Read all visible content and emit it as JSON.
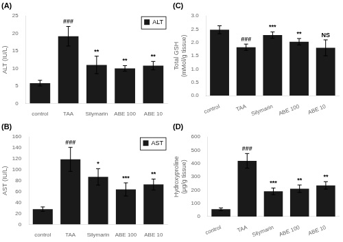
{
  "chart_data": [
    {
      "type": "bar",
      "title": "(A)",
      "categories": [
        "control",
        "TAA",
        "Silymarin",
        "ABE 100",
        "ABE 10"
      ],
      "series": [
        {
          "name": "ALT",
          "color": "#1a1a1a",
          "values": [
            5.8,
            19.2,
            11.0,
            10.0,
            10.8
          ],
          "errors": [
            0.8,
            2.8,
            2.5,
            0.8,
            1.2
          ]
        }
      ],
      "ylabel": "ALT (IU/L)",
      "ylim": [
        0,
        25
      ],
      "yticks": [
        0,
        5,
        10,
        15,
        20,
        25
      ],
      "annotations": [
        null,
        "###",
        "**",
        "**",
        "**"
      ],
      "legend": "upper right",
      "grid": false
    },
    {
      "type": "bar",
      "title": "(B)",
      "categories": [
        "control",
        "TAA",
        "Silymarin",
        "ABE 100",
        "ABE 10"
      ],
      "series": [
        {
          "name": "AST",
          "color": "#1a1a1a",
          "values": [
            28,
            119,
            87,
            64,
            73
          ],
          "errors": [
            4,
            22,
            15,
            12,
            10
          ]
        }
      ],
      "ylabel": "AST (IU/L)",
      "ylim": [
        0,
        160
      ],
      "yticks": [
        0,
        20,
        40,
        60,
        80,
        100,
        120,
        140,
        160
      ],
      "annotations": [
        null,
        "###",
        "*",
        "***",
        "**"
      ],
      "legend": "upper right",
      "grid": false
    },
    {
      "type": "bar",
      "title": "(C)",
      "categories": [
        "control",
        "TAA",
        "Silymarin",
        "ABE 100",
        "ABE 10"
      ],
      "values": [
        2.48,
        1.82,
        2.28,
        2.03,
        1.8
      ],
      "errors": [
        0.15,
        0.12,
        0.12,
        0.12,
        0.3
      ],
      "color": "#1a1a1a",
      "ylabel": [
        "Total GSH",
        "(mMol/g tissue)"
      ],
      "ylim": [
        0,
        3.0
      ],
      "yticks": [
        {
          "value": 0,
          "label": "0.0"
        },
        0.5,
        {
          "value": 1.0,
          "label": "1.0"
        },
        1.5,
        {
          "value": 2.0,
          "label": "2.0"
        },
        2.5,
        {
          "value": 3.0,
          "label": "3.0"
        }
      ],
      "annotations": [
        null,
        "###",
        "***",
        "**",
        "NS"
      ],
      "grid": false
    },
    {
      "type": "bar",
      "title": "(D)",
      "categories": [
        "control",
        "TAA",
        "Silymarin",
        "ABE 100",
        "ABE 10"
      ],
      "values": [
        55,
        420,
        190,
        210,
        235
      ],
      "errors": [
        10,
        55,
        25,
        28,
        28
      ],
      "color": "#1a1a1a",
      "ylabel": [
        "Hydroxyproline",
        "(μg/g tissue)"
      ],
      "ylim": [
        0,
        600
      ],
      "yticks": [
        0,
        100,
        200,
        300,
        400,
        500,
        600
      ],
      "annotations": [
        null,
        "###",
        "***",
        "**",
        "**"
      ],
      "grid": false
    }
  ]
}
